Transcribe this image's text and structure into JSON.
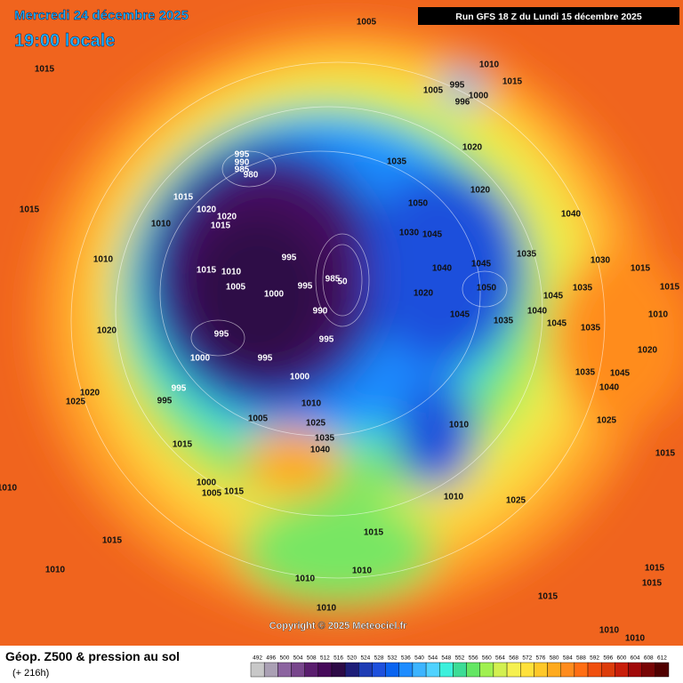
{
  "header": {
    "date": "Mercredi 24 décembre 2025",
    "time": "19:00 locale",
    "run": "Run GFS 18 Z du Lundi 15 décembre 2025"
  },
  "copyright": "Copyright © 2025 Meteociel.fr",
  "footer": {
    "title": "Géop. Z500 & pression au sol",
    "lead": "(+ 216h)"
  },
  "scale": {
    "values": [
      492,
      496,
      500,
      504,
      508,
      512,
      516,
      520,
      524,
      528,
      532,
      536,
      540,
      544,
      548,
      552,
      556,
      560,
      564,
      568,
      572,
      576,
      580,
      584,
      588,
      592,
      596,
      600,
      604,
      608,
      612
    ],
    "colors": [
      "#c8c8c8",
      "#aaa0b4",
      "#8c64a0",
      "#78468c",
      "#5a1e6e",
      "#460a5a",
      "#2d0a46",
      "#1e1e78",
      "#1e3cb4",
      "#1e50dc",
      "#0a64f0",
      "#1e8cff",
      "#3cb4ff",
      "#50d2ff",
      "#3cf0dc",
      "#3cdc96",
      "#64e664",
      "#a0f050",
      "#d2f050",
      "#f5f050",
      "#ffe13c",
      "#ffc828",
      "#ffaa1e",
      "#ff8c1e",
      "#ff6e14",
      "#f0500f",
      "#dc3c0a",
      "#c81e0a",
      "#a00a0a",
      "#780505",
      "#500000"
    ]
  },
  "isobar_labels": [
    "1005",
    "1015",
    "1010",
    "1005",
    "995",
    "1000",
    "996",
    "1015",
    "995",
    "990",
    "985",
    "980",
    "1020",
    "1035",
    "1015",
    "1020",
    "1020",
    "1015",
    "1010",
    "1015",
    "1020",
    "1050",
    "1040",
    "1030",
    "1045",
    "1035",
    "1030",
    "1010",
    "995",
    "1015",
    "1010",
    "1040",
    "1045",
    "1005",
    "1000",
    "985",
    "50",
    "995",
    "990",
    "1020",
    "1050",
    "1045",
    "1035",
    "1040",
    "1045",
    "1035",
    "1045",
    "1035",
    "1015",
    "1010",
    "1020",
    "995",
    "995",
    "1000",
    "995",
    "1020",
    "1035",
    "1045",
    "1040",
    "1000",
    "995",
    "1020",
    "1025",
    "995",
    "1010",
    "1005",
    "1025",
    "1010",
    "1025",
    "1035",
    "1015",
    "1040",
    "1015",
    "1010",
    "1000",
    "1005",
    "1015",
    "1010",
    "1025",
    "1015",
    "1015",
    "1010",
    "1010",
    "1010",
    "1015",
    "1015",
    "1015",
    "1010",
    "1010",
    "1010",
    "1015"
  ]
}
